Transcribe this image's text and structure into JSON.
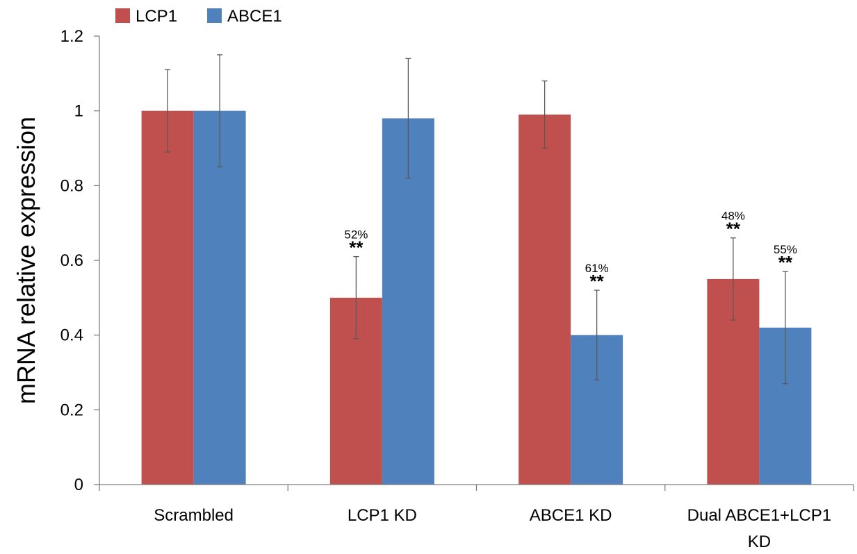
{
  "chart_data": {
    "type": "bar",
    "title": "",
    "ylabel": "mRNA relative expression",
    "xlabel": "",
    "ylim": [
      0,
      1.2
    ],
    "yticks": [
      0,
      0.2,
      0.4,
      0.6,
      0.8,
      1,
      1.2
    ],
    "ytick_labels": [
      "0",
      "0.2",
      "0.4",
      "0.6",
      "0.8",
      "1",
      "1.2"
    ],
    "categories": [
      [
        "Scrambled"
      ],
      [
        "LCP1 KD"
      ],
      [
        "ABCE1 KD"
      ],
      [
        "Dual ABCE1+LCP1",
        "KD"
      ]
    ],
    "legend_position": "top-left",
    "grid": false,
    "series": [
      {
        "name": "LCP1",
        "color": "#c0504d",
        "values": [
          1.0,
          0.5,
          0.99,
          0.55
        ],
        "errors": [
          0.11,
          0.11,
          0.09,
          0.11
        ],
        "annotations": [
          null,
          {
            "percent": "52%",
            "stars": "**"
          },
          null,
          {
            "percent": "48%",
            "stars": "**"
          }
        ]
      },
      {
        "name": "ABCE1",
        "color": "#4f81bd",
        "values": [
          1.0,
          0.98,
          0.4,
          0.42
        ],
        "errors": [
          0.15,
          0.16,
          0.12,
          0.15
        ],
        "annotations": [
          null,
          null,
          {
            "percent": "61%",
            "stars": "**"
          },
          {
            "percent": "55%",
            "stars": "**"
          }
        ]
      }
    ]
  }
}
